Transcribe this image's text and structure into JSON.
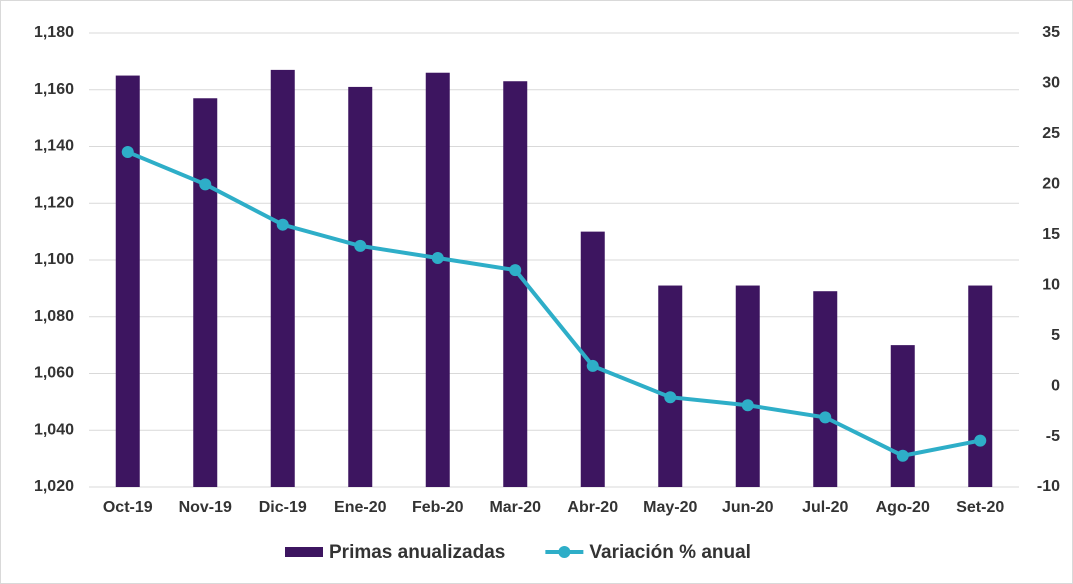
{
  "chart_data": {
    "type": "bar_line",
    "categories": [
      "Oct-19",
      "Nov-19",
      "Dic-19",
      "Ene-20",
      "Feb-20",
      "Mar-20",
      "Abr-20",
      "May-20",
      "Jun-20",
      "Jul-20",
      "Ago-20",
      "Set-20"
    ],
    "series": [
      {
        "name": "Primas anualizadas",
        "type": "bar",
        "color": "#3d1560",
        "values": [
          1165,
          1157,
          1167,
          1161,
          1166,
          1163,
          1110,
          1091,
          1091,
          1089,
          1070,
          1091
        ]
      },
      {
        "name": "Variación % anual",
        "type": "line",
        "axis": "y2",
        "color": "#2eaec8",
        "values": [
          23.2,
          20.0,
          16.0,
          13.9,
          12.7,
          11.5,
          2.0,
          -1.1,
          -1.9,
          -3.1,
          -6.9,
          -5.4
        ]
      }
    ],
    "ylim": [
      1020,
      1180
    ],
    "yticks": [
      {
        "value": 1020,
        "label": "1,020"
      },
      {
        "value": 1040,
        "label": "1,040"
      },
      {
        "value": 1060,
        "label": "1,060"
      },
      {
        "value": 1080,
        "label": "1,080"
      },
      {
        "value": 1100,
        "label": "1,100"
      },
      {
        "value": 1120,
        "label": "1,120"
      },
      {
        "value": 1140,
        "label": "1,140"
      },
      {
        "value": 1160,
        "label": "1,160"
      },
      {
        "value": 1180,
        "label": "1,180"
      }
    ],
    "y2lim": [
      -10,
      35
    ],
    "y2ticks": [
      -10,
      -5,
      0,
      5,
      10,
      15,
      20,
      25,
      30,
      35
    ],
    "grid": true,
    "legend": "bottom"
  }
}
